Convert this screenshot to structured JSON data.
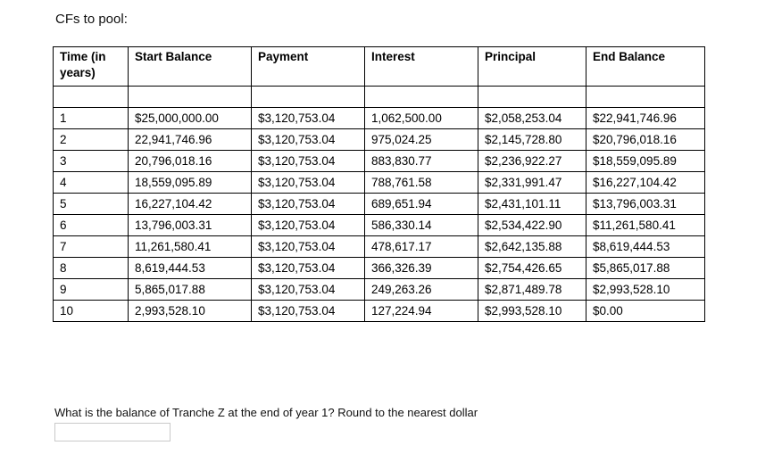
{
  "title": "CFs to pool:",
  "table": {
    "headers": [
      "Time (in years)",
      "Start Balance",
      "Payment",
      "Interest",
      "Principal",
      "End Balance"
    ],
    "rows": [
      [
        "1",
        "$25,000,000.00",
        "$3,120,753.04",
        "1,062,500.00",
        "$2,058,253.04",
        "$22,941,746.96"
      ],
      [
        "2",
        "22,941,746.96",
        "$3,120,753.04",
        "975,024.25",
        "$2,145,728.80",
        "$20,796,018.16"
      ],
      [
        "3",
        "20,796,018.16",
        "$3,120,753.04",
        "883,830.77",
        "$2,236,922.27",
        "$18,559,095.89"
      ],
      [
        "4",
        "18,559,095.89",
        "$3,120,753.04",
        "788,761.58",
        "$2,331,991.47",
        "$16,227,104.42"
      ],
      [
        "5",
        "16,227,104.42",
        "$3,120,753.04",
        "689,651.94",
        "$2,431,101.11",
        "$13,796,003.31"
      ],
      [
        "6",
        "13,796,003.31",
        "$3,120,753.04",
        "586,330.14",
        "$2,534,422.90",
        "$11,261,580.41"
      ],
      [
        "7",
        "11,261,580.41",
        "$3,120,753.04",
        "478,617.17",
        "$2,642,135.88",
        "$8,619,444.53"
      ],
      [
        "8",
        "8,619,444.53",
        "$3,120,753.04",
        "366,326.39",
        "$2,754,426.65",
        "$5,865,017.88"
      ],
      [
        "9",
        "5,865,017.88",
        "$3,120,753.04",
        "249,263.26",
        "$2,871,489.78",
        "$2,993,528.10"
      ],
      [
        "10",
        "2,993,528.10",
        "$3,120,753.04",
        "127,224.94",
        "$2,993,528.10",
        "$0.00"
      ]
    ]
  },
  "question": {
    "text": "What is the balance of Tranche Z at the end of year 1? Round to the nearest dollar",
    "answer_value": "",
    "answer_placeholder": ""
  }
}
